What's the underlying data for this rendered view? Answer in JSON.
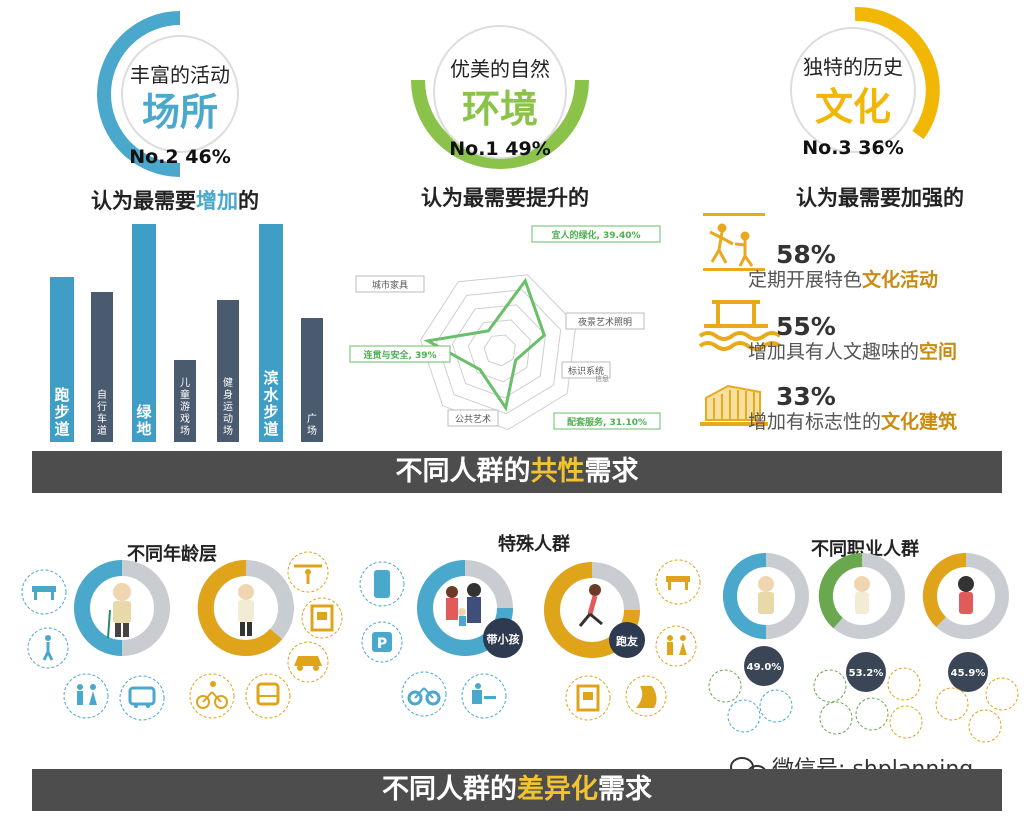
{
  "top": {
    "col1": {
      "ring_line1": "丰富的活动",
      "ring_line2": "场所",
      "ring_rank": "No.2 46%",
      "heading_pre": "认为最需要",
      "heading_hl": "增加",
      "heading_post": "的",
      "accent": "#4aa8cc"
    },
    "col2": {
      "ring_line1": "优美的自然",
      "ring_line2": "环境",
      "ring_rank": "No.1 49%",
      "heading": "认为最需要提升的",
      "accent": "#8bc34a"
    },
    "col3": {
      "ring_line1": "独特的历史",
      "ring_line2": "文化",
      "ring_rank": "No.3 36%",
      "heading": "认为最需要加强的",
      "accent": "#f2b705"
    }
  },
  "culture_items": [
    {
      "pct": "58%",
      "text": "定期开展特色",
      "hl": "文化活动",
      "icon": "dancers-icon"
    },
    {
      "pct": "55%",
      "text": "增加具有人文趣味的",
      "hl": "空间",
      "icon": "waterside-pavilion-icon"
    },
    {
      "pct": "33%",
      "text": "增加有标志性的",
      "hl": "文化建筑",
      "icon": "building-icon"
    }
  ],
  "banner1": {
    "pre": "不同人群的",
    "hl": "共性",
    "post": "需求"
  },
  "banner2": {
    "pre": "不同人群的",
    "hl": "差异化",
    "post": "需求"
  },
  "groups": {
    "age": "不同年龄层",
    "special": "特殊人群",
    "job": "不同职业人群"
  },
  "badges": {
    "with_kids": "带小孩",
    "runners": "跑友"
  },
  "job_rings": [
    "49.0%",
    "53.2%",
    "45.9%"
  ],
  "watermark": "微信号: shplanning",
  "chart_data": [
    {
      "type": "bar",
      "categories": [
        "跑步道",
        "自行车道",
        "绿地",
        "儿童游戏场",
        "健身运动场",
        "滨水步道",
        "广场"
      ],
      "values": [
        165,
        150,
        218,
        82,
        142,
        218,
        124
      ],
      "colors": [
        "#3e9ec6",
        "#4a5b70",
        "#3e9ec6",
        "#4a5b70",
        "#4a5b70",
        "#3e9ec6",
        "#4a5b70"
      ],
      "note": "bars unlabelled; relative heights estimated"
    },
    {
      "type": "radar",
      "axes": [
        "宜人的绿化",
        "夜景艺术照明",
        "标识系统",
        "配套服务",
        "公共艺术",
        "连贯与安全",
        "城市家具"
      ],
      "values": [
        39.4,
        25,
        10,
        31.1,
        15,
        39,
        12
      ],
      "labeled_values": {
        "宜人的绿化": "39.40%",
        "连贯与安全": "39%",
        "配套服务": "31.10%"
      },
      "extra_label": "信息"
    }
  ]
}
